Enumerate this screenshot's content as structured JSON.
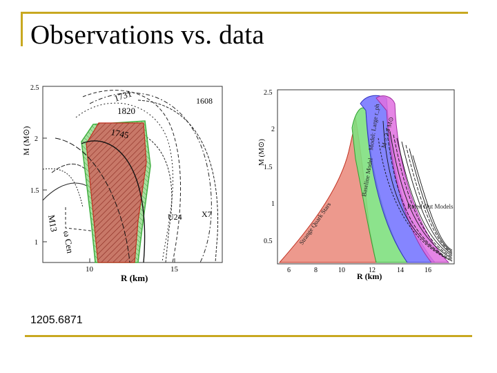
{
  "slide": {
    "title": "Observations vs. data",
    "caption": "1205.6871"
  },
  "left_plot": {
    "xlabel": "R (km)",
    "ylabel": "M (M⊙)",
    "x_ticks": [
      "10",
      "15"
    ],
    "y_ticks": [
      "1",
      "1.5",
      "2",
      "2.5"
    ],
    "labels": {
      "src_1731": "1731",
      "src_1820": "1820",
      "src_1608": "1608",
      "src_1745": "1745",
      "src_u24": "U24",
      "src_x7": "X7",
      "src_m13": "M13",
      "src_omega_cen": "ω Cen"
    }
  },
  "right_plot": {
    "xlabel": "R (km)",
    "ylabel": "M (M⊙)",
    "x_ticks": [
      "6",
      "8",
      "10",
      "12",
      "14",
      "16"
    ],
    "y_ticks": [
      "0.5",
      "1",
      "1.5",
      "2",
      "2.5"
    ],
    "labels": {
      "strange_quark": "Strange Quark Stars",
      "baseline": "Baseline Model",
      "model_large": "Model: Large r_ph",
      "m_gt": "M > 2.4 M⊙",
      "ruled_out": "Ruled Out Models"
    }
  },
  "colors": {
    "accent_rule": "#c8a820",
    "band_red": "#d86050",
    "band_green": "#50d050",
    "band_blue": "#6060ff",
    "band_magenta": "#e060e0"
  }
}
